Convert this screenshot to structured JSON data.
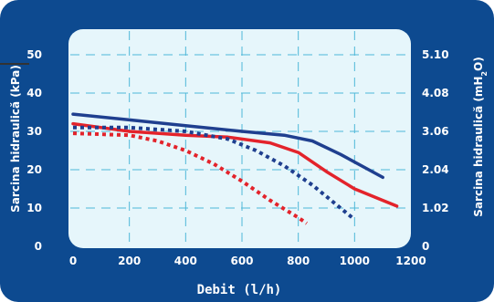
{
  "chart_data": {
    "type": "line",
    "xlabel": "Debit (l/h)",
    "ylabel": "Sarcina hidraulică (kPa)",
    "ylabel_right": "Sarcina hidraulică (mH",
    "ylabel_right_sub": "2",
    "ylabel_right_tail": "O)",
    "xlim": [
      0,
      1200
    ],
    "ylim": [
      0,
      50
    ],
    "x_ticks": [
      "0",
      "200",
      "400",
      "600",
      "800",
      "1000",
      "1200"
    ],
    "y_ticks_left": [
      "0",
      "10",
      "20",
      "30",
      "40",
      "50"
    ],
    "y_ticks_right": [
      "0",
      "1.02",
      "2.04",
      "3.06",
      "4.08",
      "5.10"
    ],
    "grid": true,
    "series": [
      {
        "color": "#1f3f8f",
        "style": "solid",
        "x": [
          0,
          200,
          400,
          600,
          750,
          850,
          950,
          1050,
          1100
        ],
        "y": [
          34.5,
          33,
          31.5,
          30,
          29,
          27.5,
          24,
          20,
          18
        ]
      },
      {
        "color": "#e3232b",
        "style": "solid",
        "x": [
          0,
          200,
          400,
          550,
          700,
          800,
          900,
          1000,
          1100,
          1150
        ],
        "y": [
          32,
          30,
          29,
          28.5,
          27,
          24.5,
          19.5,
          15,
          12,
          10.5
        ]
      },
      {
        "color": "#1f3f8f",
        "style": "dotted",
        "x": [
          0,
          200,
          400,
          550,
          650,
          750,
          850,
          950,
          1000
        ],
        "y": [
          31,
          31,
          30,
          28,
          25,
          21,
          16,
          10,
          7
        ]
      },
      {
        "color": "#e3232b",
        "style": "dotted",
        "x": [
          0,
          200,
          300,
          400,
          500,
          600,
          700,
          800,
          830
        ],
        "y": [
          29.5,
          29,
          27.5,
          25,
          21.5,
          17,
          12,
          7.5,
          6
        ]
      }
    ]
  },
  "colors": {
    "panel": "#0d4a90",
    "plot_bg": "#e6f6fb",
    "grid": "#4fb8d8"
  }
}
